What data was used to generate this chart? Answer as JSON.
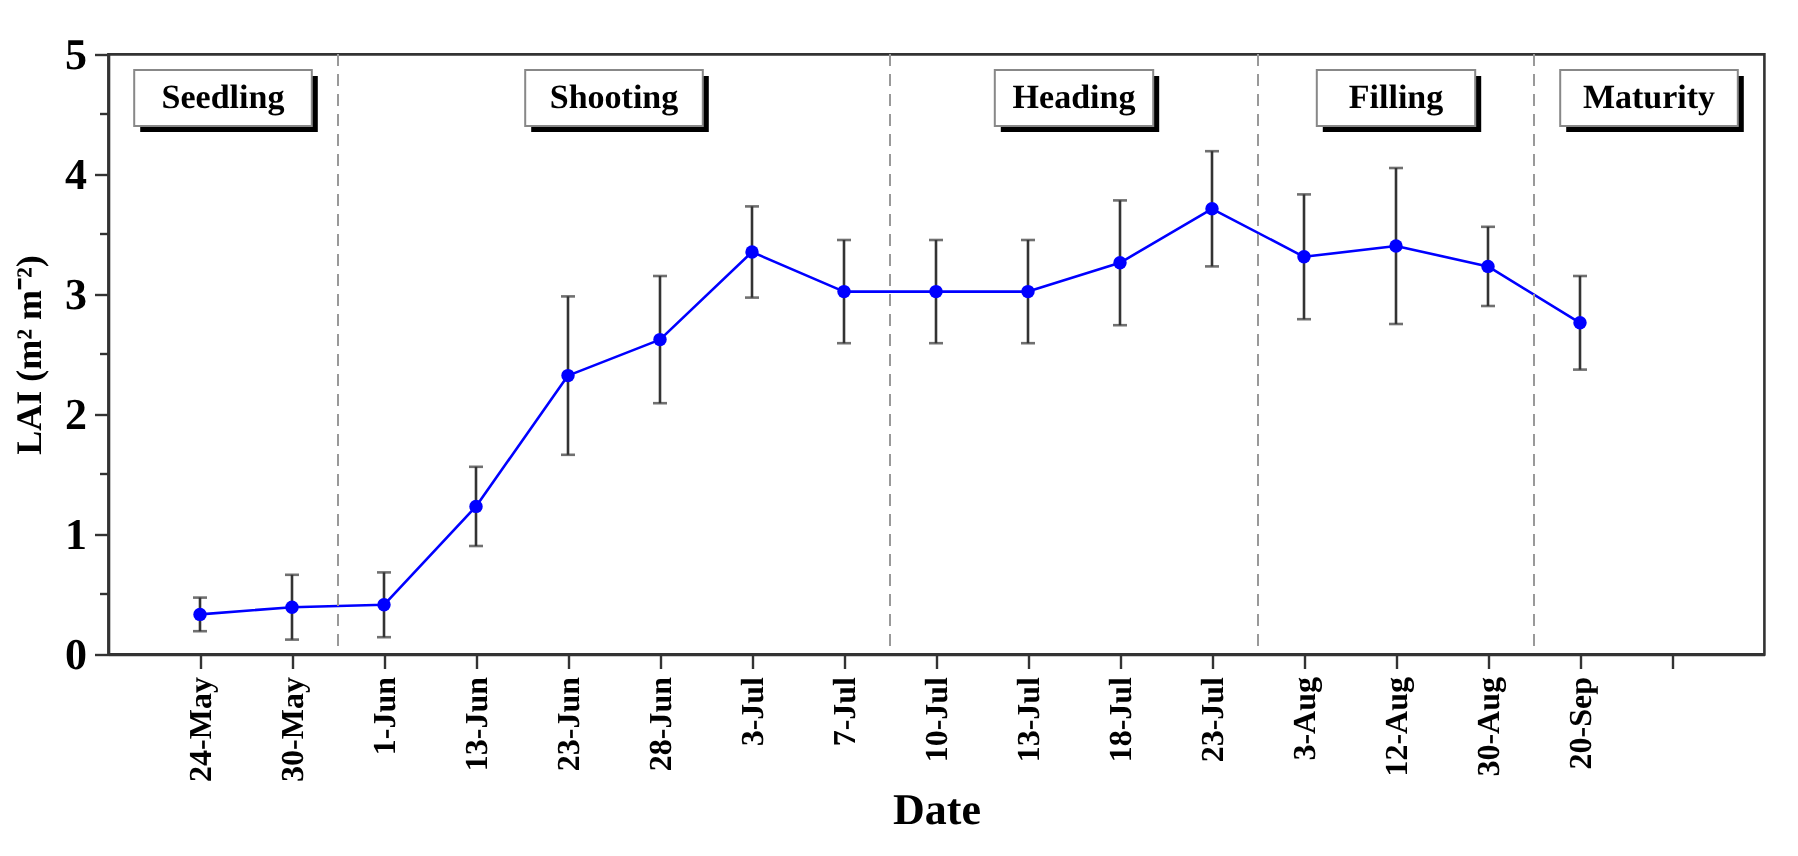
{
  "chart_data": {
    "type": "line",
    "xlabel": "Date",
    "ylabel": "LAI (m² m⁻²)",
    "categories": [
      "24-May",
      "30-May",
      "1-Jun",
      "13-Jun",
      "23-Jun",
      "28-Jun",
      "3-Jul",
      "7-Jul",
      "10-Jul",
      "13-Jul",
      "18-Jul",
      "23-Jul",
      "3-Aug",
      "12-Aug",
      "30-Aug",
      "20-Sep",
      null
    ],
    "values": [
      0.33,
      0.39,
      0.41,
      1.23,
      2.32,
      2.62,
      3.35,
      3.02,
      3.02,
      3.02,
      3.26,
      3.71,
      3.31,
      3.4,
      3.23,
      2.76,
      null
    ],
    "errors": [
      0.14,
      0.27,
      0.27,
      0.33,
      0.66,
      0.53,
      0.38,
      0.43,
      0.43,
      0.43,
      0.52,
      0.48,
      0.52,
      0.65,
      0.33,
      0.39,
      null
    ],
    "color": "#0000ff",
    "marker": "circle",
    "line_style": "solid",
    "ylim": [
      0,
      5
    ],
    "yticks": [
      0,
      {
        "value": 0.5,
        "label": null
      },
      1,
      {
        "value": 1.5,
        "label": null
      },
      2,
      {
        "value": 2.5,
        "label": null
      },
      3,
      {
        "value": 3.5,
        "label": null
      },
      4,
      {
        "value": 4.5,
        "label": null
      },
      5
    ],
    "annotations": [
      "Seedling",
      "Shooting",
      "Heading",
      "Filling",
      "Maturity"
    ]
  }
}
